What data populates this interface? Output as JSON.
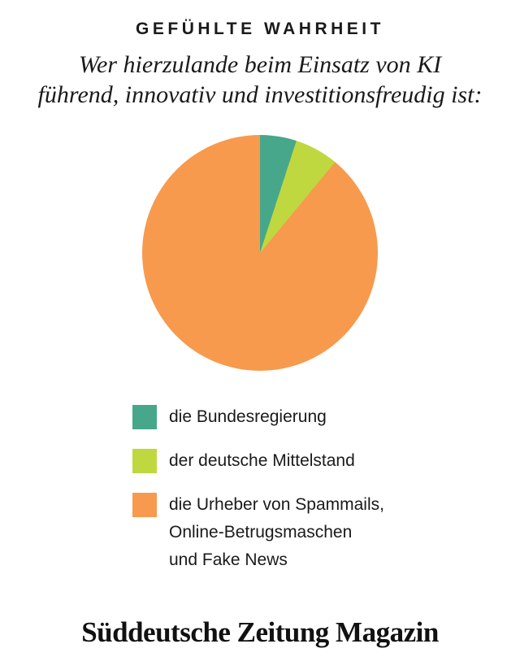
{
  "header": {
    "kicker": "GEFÜHLTE WAHRHEIT",
    "subtitle_line1": "Wer hierzulande beim Einsatz von KI",
    "subtitle_line2": "führend, innovativ und investitionsfreudig ist:"
  },
  "chart_data": {
    "type": "pie",
    "title": "Gefühlte Wahrheit",
    "subtitle": "Wer hierzulande beim Einsatz von KI führend, innovativ und investitionsfreudig ist:",
    "categories": [
      "die Bundesregierung",
      "der deutsche Mittelstand",
      "die Urheber von Spammails, Online-Betrugsmaschen und Fake News"
    ],
    "values": [
      5,
      6,
      89
    ],
    "values_labeled": false,
    "colors": [
      "#47A78A",
      "#BFD83F",
      "#F79A4D"
    ],
    "start_angle_deg": 0,
    "direction": "clockwise",
    "legend_position": "bottom-left"
  },
  "legend": {
    "items": [
      {
        "label": "die Bundesregierung",
        "color": "#47A78A"
      },
      {
        "label": "der deutsche Mittelstand",
        "color": "#BFD83F"
      },
      {
        "label": "die Urheber von Spammails,\nOnline-Betrugsmaschen\nund Fake News",
        "color": "#F79A4D"
      }
    ]
  },
  "footer": {
    "logo_text": "Süddeutsche Zeitung Magazin"
  }
}
